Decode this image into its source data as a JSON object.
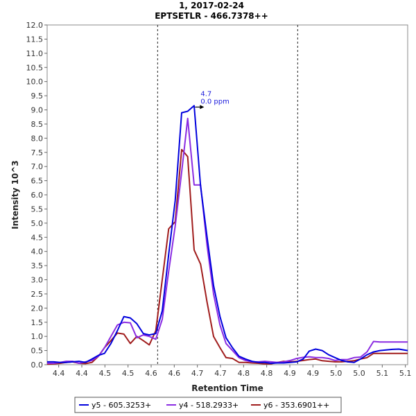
{
  "chart_data": {
    "type": "line",
    "title": "1, 2017-02-24",
    "subtitle": "EPTSETLR - 466.7378++",
    "xlabel": "Retention Time",
    "ylabel": "Intensity 10^3",
    "xlim": [
      4.375,
      5.155
    ],
    "ylim": [
      0,
      12.0
    ],
    "x_tick_values": [
      4.4,
      4.45,
      4.5,
      4.55,
      4.6,
      4.65,
      4.7,
      4.75,
      4.8,
      4.85,
      4.9,
      4.95,
      5.0,
      5.05,
      5.1,
      5.15
    ],
    "x_tick_labels": [
      "4.4",
      "4.4",
      "4.5",
      "4.5",
      "4.6",
      "4.6",
      "4.7",
      "4.7",
      "4.8",
      "4.8",
      "4.9",
      "4.9",
      "5.0",
      "5.0",
      "5.1",
      "5.1"
    ],
    "y_ticks": [
      0.0,
      0.5,
      1.0,
      1.5,
      2.0,
      2.5,
      3.0,
      3.5,
      4.0,
      4.5,
      5.0,
      5.5,
      6.0,
      6.5,
      7.0,
      7.5,
      8.0,
      8.5,
      9.0,
      9.5,
      10.0,
      10.5,
      11.0,
      11.5,
      12.0
    ],
    "y_tick_labels": [
      "0.0",
      "0.5",
      "1.0",
      "1.5",
      "2.0",
      "2.5",
      "3.0",
      "3.5",
      "4.0",
      "4.5",
      "5.0",
      "5.5",
      "6.0",
      "6.5",
      "7.0",
      "7.5",
      "8.0",
      "8.5",
      "9.0",
      "9.5",
      "10.0",
      "10.5",
      "11.0",
      "11.5",
      "12.0"
    ],
    "grid": false,
    "vlines": [
      4.614,
      4.917
    ],
    "annotation": {
      "line1": "4.7",
      "line2": "0.0 ppm",
      "x": 4.716,
      "y": 9.1
    },
    "legend_position": "bottom",
    "series": [
      {
        "name": "y5 - 605.3253+",
        "color": "#0000dd",
        "x": [
          4.375,
          4.389,
          4.403,
          4.416,
          4.43,
          4.444,
          4.458,
          4.472,
          4.486,
          4.499,
          4.513,
          4.527,
          4.541,
          4.555,
          4.569,
          4.583,
          4.596,
          4.61,
          4.624,
          4.638,
          4.652,
          4.666,
          4.679,
          4.693,
          4.707,
          4.721,
          4.735,
          4.749,
          4.762,
          4.776,
          4.79,
          4.804,
          4.818,
          4.832,
          4.846,
          4.859,
          4.873,
          4.887,
          4.901,
          4.915,
          4.929,
          4.942,
          4.956,
          4.97,
          4.984,
          4.998,
          5.012,
          5.025,
          5.039,
          5.053,
          5.067,
          5.081,
          5.095,
          5.108,
          5.122,
          5.136,
          5.155
        ],
        "values": [
          0.1,
          0.1,
          0.08,
          0.08,
          0.1,
          0.12,
          0.08,
          0.2,
          0.33,
          0.4,
          0.75,
          1.2,
          1.7,
          1.65,
          1.45,
          1.1,
          1.05,
          1.1,
          1.9,
          3.9,
          5.8,
          8.9,
          8.95,
          9.15,
          6.3,
          4.5,
          2.8,
          1.7,
          0.95,
          0.6,
          0.3,
          0.2,
          0.12,
          0.08,
          0.08,
          0.05,
          0.06,
          0.06,
          0.08,
          0.1,
          0.2,
          0.48,
          0.55,
          0.5,
          0.35,
          0.25,
          0.15,
          0.1,
          0.08,
          0.2,
          0.35,
          0.45,
          0.5,
          0.52,
          0.54,
          0.55,
          0.5
        ]
      },
      {
        "name": "y4 - 518.2933+",
        "color": "#8a2be2",
        "x": [
          4.375,
          4.389,
          4.403,
          4.416,
          4.43,
          4.444,
          4.458,
          4.472,
          4.486,
          4.499,
          4.513,
          4.527,
          4.541,
          4.555,
          4.569,
          4.583,
          4.596,
          4.61,
          4.624,
          4.638,
          4.652,
          4.666,
          4.679,
          4.693,
          4.707,
          4.721,
          4.735,
          4.749,
          4.762,
          4.776,
          4.79,
          4.804,
          4.818,
          4.832,
          4.846,
          4.859,
          4.873,
          4.887,
          4.901,
          4.915,
          4.929,
          4.942,
          4.956,
          4.97,
          4.984,
          4.998,
          5.012,
          5.025,
          5.039,
          5.053,
          5.067,
          5.081,
          5.095,
          5.108,
          5.122,
          5.136,
          5.155
        ],
        "values": [
          0.05,
          0.05,
          0.08,
          0.12,
          0.12,
          0.05,
          0.1,
          0.15,
          0.3,
          0.6,
          1.0,
          1.4,
          1.5,
          1.48,
          0.95,
          1.05,
          1.0,
          0.9,
          1.6,
          3.3,
          4.9,
          6.8,
          8.7,
          6.35,
          6.35,
          4.2,
          2.5,
          1.4,
          0.75,
          0.5,
          0.25,
          0.15,
          0.1,
          0.1,
          0.12,
          0.1,
          0.08,
          0.1,
          0.15,
          0.22,
          0.26,
          0.28,
          0.25,
          0.25,
          0.22,
          0.15,
          0.18,
          0.18,
          0.25,
          0.27,
          0.45,
          0.82,
          0.8,
          0.8,
          0.8,
          0.8,
          0.8
        ]
      },
      {
        "name": "y6 - 353.6901++",
        "color": "#a01c1c",
        "x": [
          4.375,
          4.389,
          4.403,
          4.416,
          4.43,
          4.444,
          4.458,
          4.472,
          4.486,
          4.499,
          4.513,
          4.527,
          4.541,
          4.555,
          4.569,
          4.583,
          4.596,
          4.61,
          4.624,
          4.638,
          4.652,
          4.666,
          4.679,
          4.693,
          4.707,
          4.721,
          4.735,
          4.749,
          4.762,
          4.776,
          4.79,
          4.804,
          4.818,
          4.832,
          4.846,
          4.859,
          4.873,
          4.887,
          4.901,
          4.915,
          4.929,
          4.942,
          4.956,
          4.97,
          4.984,
          4.998,
          5.012,
          5.025,
          5.039,
          5.053,
          5.067,
          5.081,
          5.095,
          5.108,
          5.122,
          5.136,
          5.155
        ],
        "values": [
          0.02,
          0.03,
          0.05,
          0.08,
          0.1,
          0.05,
          0.04,
          0.08,
          0.3,
          0.6,
          0.85,
          1.12,
          1.08,
          0.75,
          1.0,
          0.85,
          0.7,
          1.2,
          3.0,
          4.8,
          5.05,
          7.6,
          7.35,
          4.05,
          3.55,
          2.2,
          1.0,
          0.6,
          0.25,
          0.22,
          0.08,
          0.08,
          0.06,
          0.05,
          0.03,
          0.03,
          0.08,
          0.12,
          0.1,
          0.12,
          0.15,
          0.18,
          0.2,
          0.14,
          0.12,
          0.1,
          0.1,
          0.12,
          0.14,
          0.2,
          0.25,
          0.4,
          0.4,
          0.4,
          0.4,
          0.4,
          0.4
        ]
      }
    ]
  }
}
